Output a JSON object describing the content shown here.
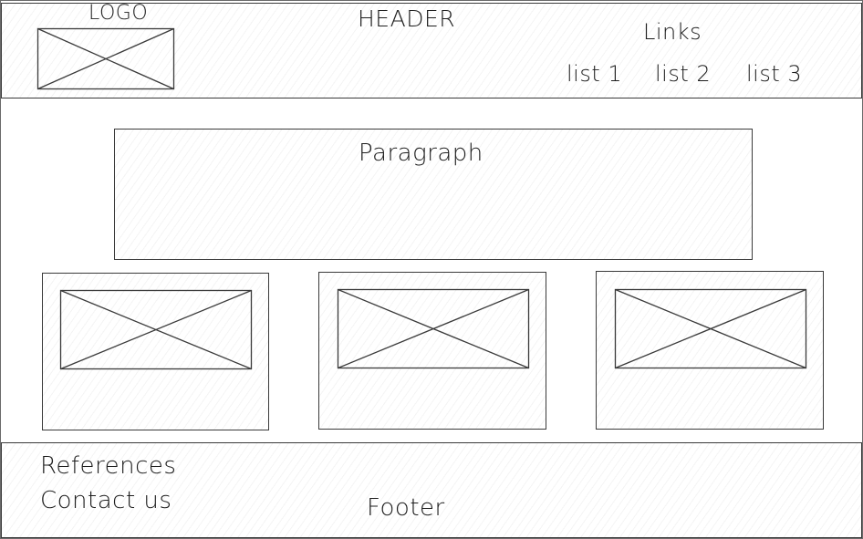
{
  "header": {
    "logo_label": "LOGO",
    "title": "HEADER",
    "links_label": "Links",
    "nav": [
      "list 1",
      "list 2",
      "list 3"
    ]
  },
  "main": {
    "paragraph_label": "Paragraph"
  },
  "footer": {
    "references_label": "References",
    "contact_label": "Contact us",
    "title": "Footer"
  },
  "colors": {
    "stroke": "#3a3a3a",
    "text": "#1e1e1e",
    "background": "#ffffff"
  },
  "icons": {
    "image_placeholder": "image-placeholder-icon"
  }
}
